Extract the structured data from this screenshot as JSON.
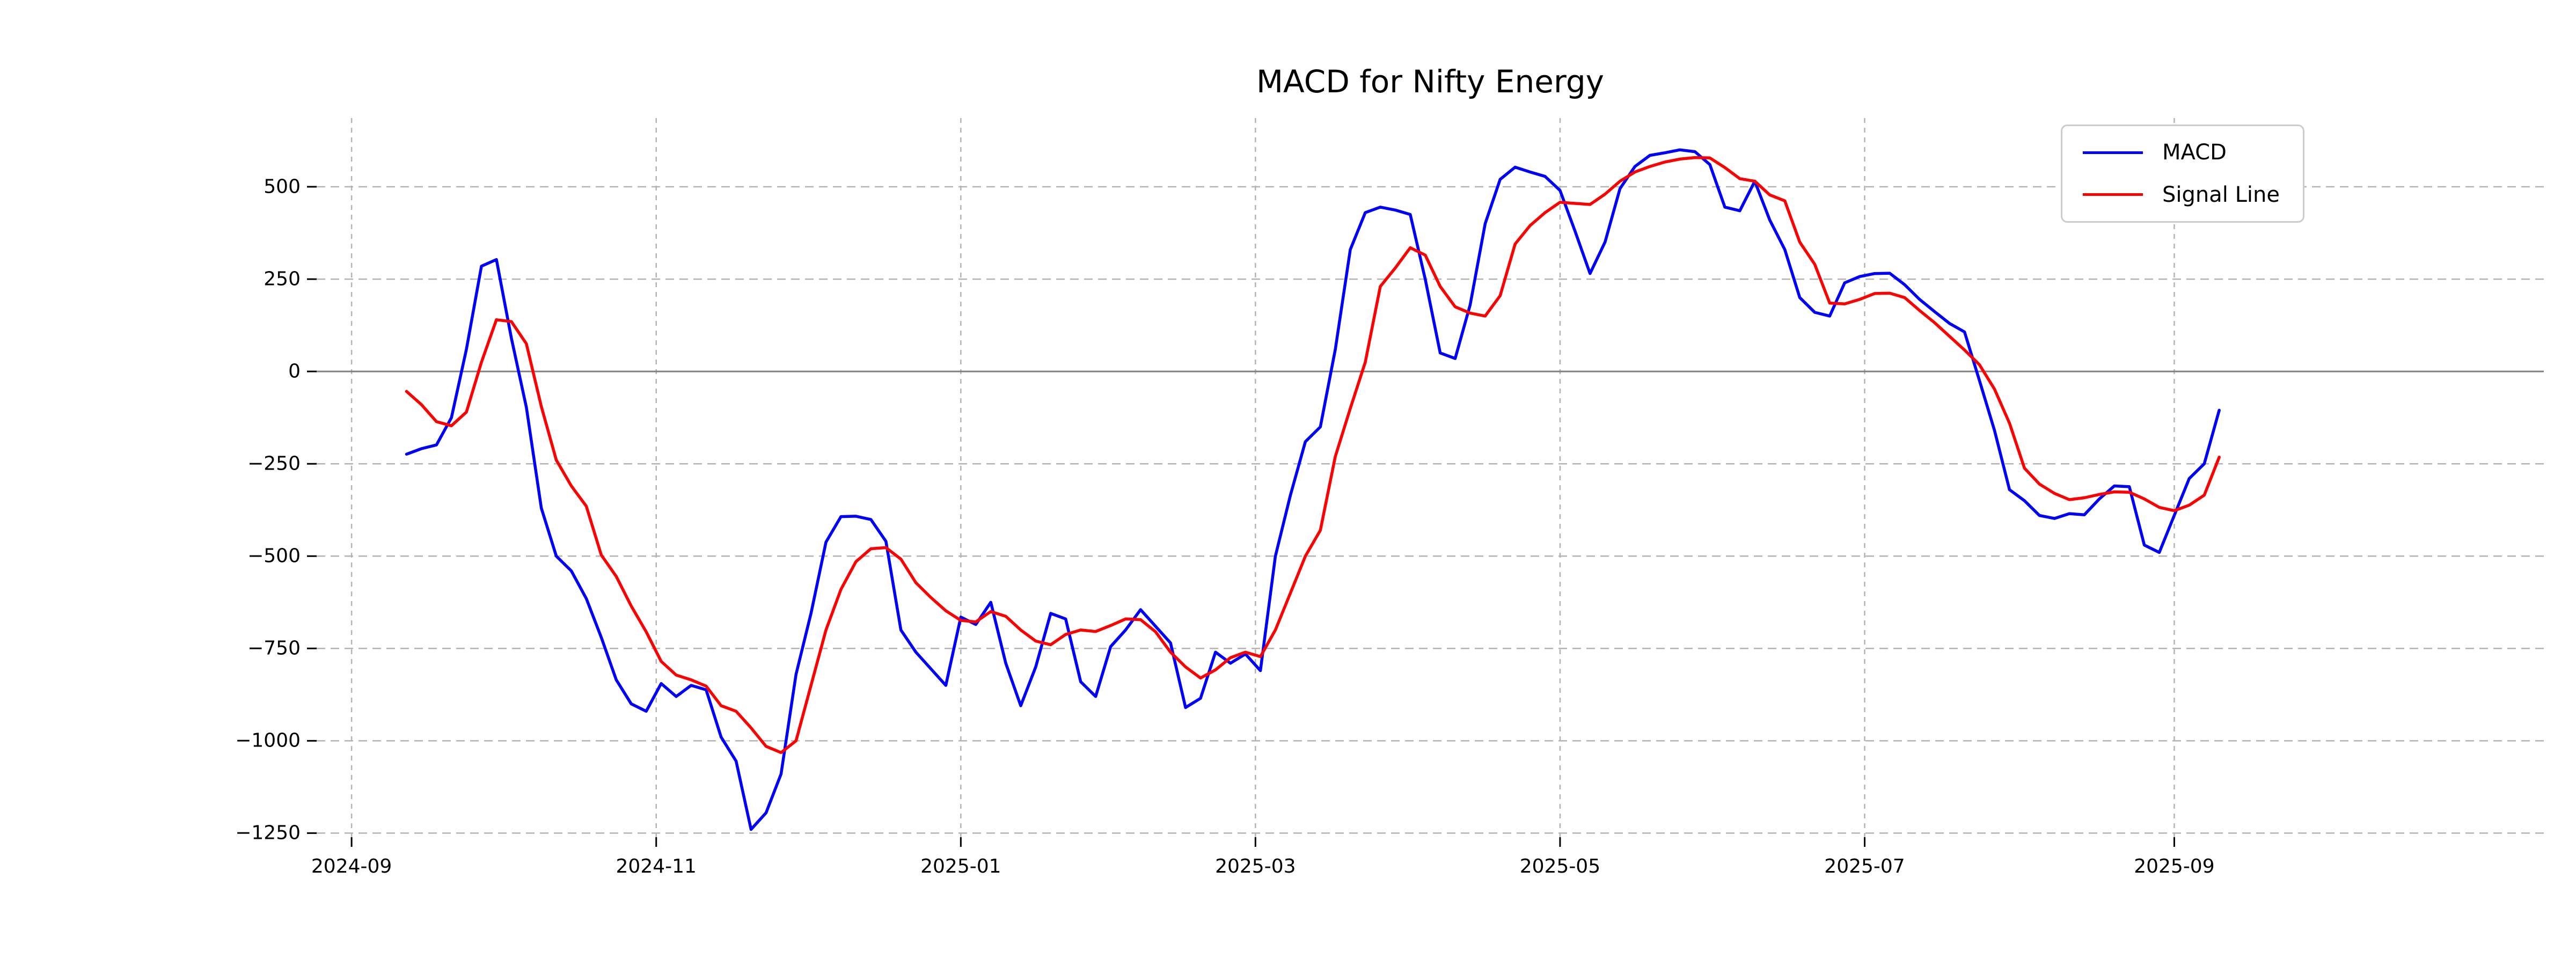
{
  "window": {
    "title": "MACD for Nifty Energy"
  },
  "colors": {
    "macd_line": "#0000ff",
    "signal_line": "#ff0000",
    "grid": "#b3b3b3",
    "zero_line": "#808080",
    "text": "#000000",
    "legend_border": "#cccccc",
    "background": "#ffffff"
  },
  "legend": {
    "position": "upper right",
    "entries": [
      {
        "label": "MACD",
        "color": "#0000ff"
      },
      {
        "label": "Signal Line",
        "color": "#ff0000"
      }
    ]
  },
  "chart_data": {
    "type": "line",
    "title": "MACD for Nifty Energy",
    "xlabel": "",
    "ylabel": "",
    "grid": true,
    "legend_position": "upper right",
    "x_axis": {
      "tick_dates": [
        "2024-09-01",
        "2024-11-01",
        "2025-01-01",
        "2025-03-01",
        "2025-05-01",
        "2025-07-01",
        "2025-09-01"
      ],
      "tick_labels": [
        "2024-09",
        "2024-11",
        "2025-01",
        "2025-03",
        "2025-05",
        "2025-07",
        "2025-09"
      ],
      "range_dates": [
        "2024-08-25",
        "2025-11-14"
      ]
    },
    "y_axis": {
      "ticks": [
        500,
        250,
        0,
        -250,
        -500,
        -750,
        -1000,
        -1250
      ],
      "tick_labels": [
        "500",
        "250",
        "0",
        "−250",
        "−500",
        "−750",
        "−1000",
        "−1250"
      ],
      "range": [
        -1261,
        686
      ],
      "zero_line": true
    },
    "x": [
      "2024-09-12",
      "2024-09-15",
      "2024-09-18",
      "2024-09-21",
      "2024-09-24",
      "2024-09-27",
      "2024-09-30",
      "2024-10-03",
      "2024-10-06",
      "2024-10-09",
      "2024-10-12",
      "2024-10-15",
      "2024-10-18",
      "2024-10-21",
      "2024-10-24",
      "2024-10-27",
      "2024-10-30",
      "2024-11-02",
      "2024-11-05",
      "2024-11-08",
      "2024-11-11",
      "2024-11-14",
      "2024-11-17",
      "2024-11-20",
      "2024-11-23",
      "2024-11-26",
      "2024-11-29",
      "2024-12-02",
      "2024-12-05",
      "2024-12-08",
      "2024-12-11",
      "2024-12-14",
      "2024-12-17",
      "2024-12-20",
      "2024-12-23",
      "2024-12-26",
      "2024-12-29",
      "2025-01-01",
      "2025-01-04",
      "2025-01-07",
      "2025-01-10",
      "2025-01-13",
      "2025-01-16",
      "2025-01-19",
      "2025-01-22",
      "2025-01-25",
      "2025-01-28",
      "2025-01-31",
      "2025-02-03",
      "2025-02-06",
      "2025-02-09",
      "2025-02-12",
      "2025-02-15",
      "2025-02-18",
      "2025-02-21",
      "2025-02-24",
      "2025-02-27",
      "2025-03-02",
      "2025-03-05",
      "2025-03-08",
      "2025-03-11",
      "2025-03-14",
      "2025-03-17",
      "2025-03-20",
      "2025-03-23",
      "2025-03-26",
      "2025-03-29",
      "2025-04-01",
      "2025-04-04",
      "2025-04-07",
      "2025-04-10",
      "2025-04-13",
      "2025-04-16",
      "2025-04-19",
      "2025-04-22",
      "2025-04-25",
      "2025-04-28",
      "2025-05-01",
      "2025-05-04",
      "2025-05-07",
      "2025-05-10",
      "2025-05-13",
      "2025-05-16",
      "2025-05-19",
      "2025-05-22",
      "2025-05-25",
      "2025-05-28",
      "2025-05-31",
      "2025-06-03",
      "2025-06-06",
      "2025-06-09",
      "2025-06-12",
      "2025-06-15",
      "2025-06-18",
      "2025-06-21",
      "2025-06-24",
      "2025-06-27",
      "2025-06-30",
      "2025-07-03",
      "2025-07-06",
      "2025-07-09",
      "2025-07-12",
      "2025-07-15",
      "2025-07-18",
      "2025-07-21",
      "2025-07-24",
      "2025-07-27",
      "2025-07-30",
      "2025-08-02",
      "2025-08-05",
      "2025-08-08",
      "2025-08-11",
      "2025-08-14",
      "2025-08-17",
      "2025-08-20",
      "2025-08-23",
      "2025-08-26",
      "2025-08-29",
      "2025-09-01",
      "2025-09-04",
      "2025-09-07",
      "2025-09-10"
    ],
    "series": [
      {
        "name": "MACD",
        "color": "#0000ff",
        "values": [
          -224,
          -209,
          -199,
          -125,
          60,
          285,
          303,
          90,
          -97,
          -370,
          -500,
          -540,
          -615,
          -720,
          -835,
          -900,
          -920,
          -845,
          -880,
          -850,
          -862,
          -990,
          -1055,
          -1240,
          -1195,
          -1090,
          -820,
          -655,
          -462,
          -393,
          -392,
          -401,
          -460,
          -700,
          -760,
          -805,
          -850,
          -665,
          -685,
          -625,
          -790,
          -905,
          -800,
          -655,
          -670,
          -840,
          -880,
          -745,
          -700,
          -645,
          -690,
          -735,
          -910,
          -885,
          -760,
          -790,
          -765,
          -810,
          -500,
          -335,
          -190,
          -150,
          60,
          330,
          430,
          445,
          437,
          425,
          250,
          50,
          35,
          180,
          400,
          520,
          553,
          540,
          528,
          490,
          380,
          265,
          350,
          495,
          555,
          585,
          592,
          600,
          595,
          560,
          445,
          435,
          515,
          410,
          330,
          200,
          160,
          150,
          240,
          257,
          265,
          266,
          235,
          195,
          162,
          130,
          107,
          -25,
          -160,
          -320,
          -350,
          -390,
          -398,
          -385,
          -388,
          -345,
          -310,
          -312,
          -470,
          -490,
          -390,
          -290,
          -250,
          -105
        ]
      },
      {
        "name": "Signal Line",
        "color": "#ff0000",
        "values": [
          -54,
          -90,
          -136,
          -147,
          -110,
          25,
          140,
          135,
          75,
          -95,
          -240,
          -310,
          -365,
          -497,
          -555,
          -635,
          -705,
          -785,
          -822,
          -835,
          -852,
          -905,
          -920,
          -965,
          -1015,
          -1032,
          -1000,
          -850,
          -700,
          -590,
          -515,
          -480,
          -477,
          -508,
          -572,
          -612,
          -648,
          -674,
          -678,
          -650,
          -663,
          -700,
          -730,
          -740,
          -712,
          -700,
          -704,
          -688,
          -670,
          -672,
          -705,
          -760,
          -800,
          -830,
          -808,
          -775,
          -760,
          -772,
          -700,
          -600,
          -500,
          -430,
          -230,
          -100,
          25,
          230,
          280,
          335,
          315,
          230,
          175,
          158,
          150,
          205,
          345,
          395,
          430,
          458,
          455,
          452,
          480,
          515,
          540,
          555,
          567,
          575,
          579,
          578,
          552,
          522,
          515,
          478,
          462,
          350,
          290,
          185,
          183,
          195,
          211,
          212,
          200,
          165,
          132,
          95,
          58,
          18,
          -48,
          -140,
          -262,
          -305,
          -330,
          -347,
          -342,
          -333,
          -326,
          -327,
          -345,
          -368,
          -377,
          -362,
          -335,
          -232
        ]
      }
    ]
  }
}
